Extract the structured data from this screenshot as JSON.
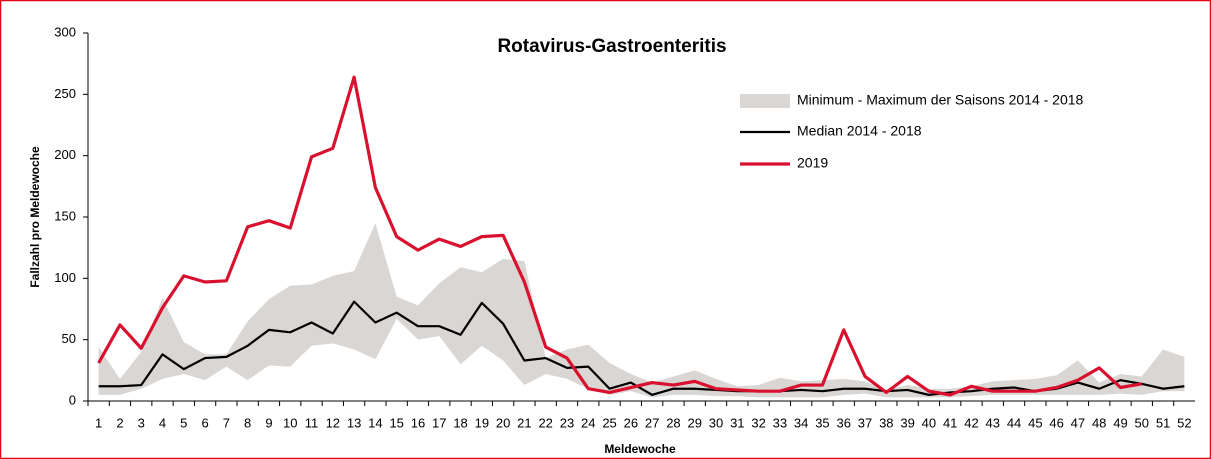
{
  "chart_data": {
    "type": "line",
    "title": "Rotavirus-Gastroenteritis",
    "x_label": "Meldewoche",
    "y_label": "Fallzahl pro Meldewoche",
    "categories": [
      "1",
      "2",
      "3",
      "4",
      "5",
      "6",
      "7",
      "8",
      "9",
      "10",
      "11",
      "12",
      "13",
      "14",
      "15",
      "16",
      "17",
      "18",
      "19",
      "20",
      "21",
      "22",
      "23",
      "24",
      "25",
      "26",
      "27",
      "28",
      "29",
      "30",
      "31",
      "32",
      "33",
      "34",
      "35",
      "36",
      "37",
      "38",
      "39",
      "40",
      "41",
      "42",
      "43",
      "44",
      "45",
      "46",
      "47",
      "48",
      "49",
      "50",
      "51",
      "52"
    ],
    "ylim": [
      0,
      300
    ],
    "yticks": [
      0,
      50,
      100,
      150,
      200,
      250,
      300
    ],
    "legend": "upper right",
    "band": {
      "name": "Minimum - Maximum der Saisons 2014 - 2018",
      "color": "#d9d6d4",
      "low": [
        5,
        5,
        10,
        18,
        22,
        17,
        28,
        17,
        29,
        28,
        45,
        47,
        42,
        34,
        67,
        50,
        53,
        30,
        45,
        33,
        13,
        22,
        18,
        10,
        5,
        8,
        3,
        5,
        5,
        4,
        4,
        3,
        3,
        3,
        3,
        5,
        6,
        3,
        3,
        3,
        3,
        4,
        5,
        5,
        5,
        5,
        5,
        5,
        6,
        5,
        8,
        8
      ],
      "high": [
        44,
        18,
        40,
        84,
        48,
        38,
        38,
        65,
        83,
        94,
        95,
        102,
        106,
        145,
        85,
        78,
        96,
        109,
        105,
        116,
        114,
        35,
        42,
        46,
        31,
        22,
        15,
        20,
        25,
        18,
        12,
        13,
        19,
        16,
        17,
        18,
        16,
        9,
        13,
        10,
        10,
        12,
        16,
        17,
        18,
        21,
        33,
        15,
        22,
        20,
        42,
        36
      ]
    },
    "series": [
      {
        "name": "Median 2014 - 2018",
        "color": "#000000",
        "values": [
          12,
          12,
          13,
          38,
          26,
          35,
          36,
          45,
          58,
          56,
          64,
          55,
          81,
          64,
          72,
          61,
          61,
          54,
          80,
          63,
          33,
          35,
          27,
          28,
          10,
          15,
          5,
          10,
          10,
          9,
          8,
          8,
          8,
          9,
          8,
          10,
          10,
          8,
          9,
          5,
          7,
          8,
          10,
          11,
          8,
          10,
          15,
          10,
          17,
          14,
          10,
          12
        ]
      },
      {
        "name": "2019",
        "color": "#d9112e",
        "values": [
          31,
          62,
          43,
          76,
          102,
          97,
          98,
          142,
          147,
          141,
          199,
          206,
          264,
          174,
          134,
          123,
          132,
          126,
          134,
          135,
          97,
          44,
          35,
          10,
          7,
          11,
          15,
          13,
          16,
          10,
          9,
          8,
          8,
          13,
          13,
          58,
          20,
          7,
          20,
          8,
          5,
          12,
          8,
          8,
          8,
          11,
          17,
          27,
          11,
          14,
          null,
          null
        ]
      }
    ]
  }
}
